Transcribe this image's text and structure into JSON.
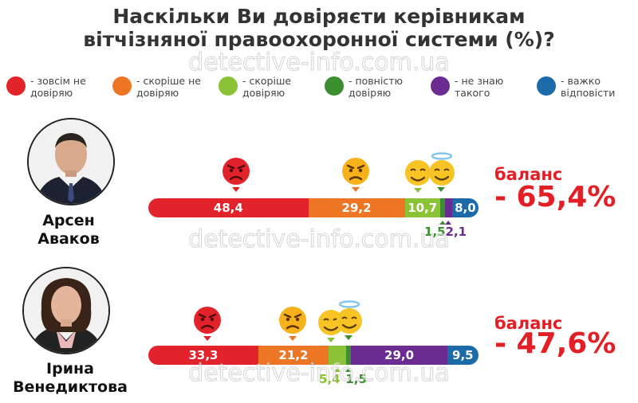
{
  "title_line1": "Наскільки Ви довіряєти керівникам",
  "title_line2": "вітчізняної правоохоронної системи (%)?",
  "watermark": "detective-info.com.ua",
  "legend": [
    {
      "label": "- зовсім не довіряю",
      "color": "#e3232b"
    },
    {
      "label": "- скоріше не довіряю",
      "color": "#ec7623"
    },
    {
      "label": "- скоріше довіряю",
      "color": "#8cc236"
    },
    {
      "label": "- повністю довіряю",
      "color": "#3c8f2e"
    },
    {
      "label": "- не знаю такого",
      "color": "#6b2c91"
    },
    {
      "label": "- важко відповісти",
      "color": "#1c6aa7"
    }
  ],
  "persons": [
    {
      "name_line1": "Арсен",
      "name_line2": "Аваков",
      "balance_label": "баланс",
      "balance_value": "- 65,4%"
    },
    {
      "name_line1": "Ірина",
      "name_line2": "Венедиктова",
      "balance_label": "баланс",
      "balance_value": "- 47,6%"
    }
  ],
  "chart_data": {
    "type": "bar",
    "orientation": "horizontal",
    "stacked": true,
    "title": "Наскільки Ви довіряєти керівникам вітчізняної правоохоронної системи (%)?",
    "categories": [
      "Арсен Аваков",
      "Ірина Венедиктова"
    ],
    "series": [
      {
        "name": "- зовсім не довіряю",
        "color": "#e3232b",
        "values": [
          48.4,
          33.3
        ],
        "labels": [
          "48,4",
          "33,3"
        ]
      },
      {
        "name": "- скоріше не довіряю",
        "color": "#ec7623",
        "values": [
          29.2,
          21.2
        ],
        "labels": [
          "29,2",
          "21,2"
        ]
      },
      {
        "name": "- скоріше довіряю",
        "color": "#8cc236",
        "values": [
          10.7,
          5.4
        ],
        "labels": [
          "10,7",
          "5,4"
        ]
      },
      {
        "name": "- повністю довіряю",
        "color": "#3c8f2e",
        "values": [
          1.5,
          1.5
        ],
        "labels": [
          "1,5",
          "1,5"
        ]
      },
      {
        "name": "- не знаю такого",
        "color": "#6b2c91",
        "values": [
          2.1,
          29.0
        ],
        "labels": [
          "2,1",
          "29,0"
        ]
      },
      {
        "name": "- важко відповісти",
        "color": "#1c6aa7",
        "values": [
          8.0,
          9.5
        ],
        "labels": [
          "8,0",
          "9,5"
        ]
      }
    ],
    "legend_position": "top",
    "grid": false
  }
}
